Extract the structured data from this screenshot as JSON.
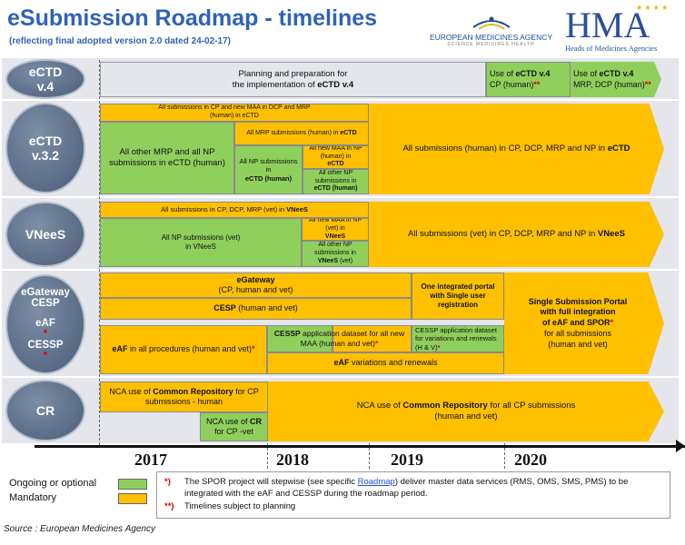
{
  "header": {
    "title": "eSubmission Roadmap - timelines",
    "subtitle": "(reflecting final adopted version 2.0 dated 24-02-17)",
    "ema_name": "EUROPEAN MEDICINES AGENCY",
    "ema_tagline": "SCIENCE  MEDICINES  HEALTH",
    "hma_logo": "HMA",
    "hma_name": "Heads of Medicines Agencies"
  },
  "rows": {
    "ectd4": {
      "label_line1": "eCTD",
      "label_line2": "v.4",
      "planning": "Planning and preparation for",
      "planning2": "the implementation of",
      "planning_bold": "eCTD v.4",
      "use_cp_prefix": "Use of",
      "use_cp_bold": "eCTD v.4",
      "use_cp_line2": "CP (human)",
      "use_mrp_prefix": "Use of",
      "use_mrp_bold": "eCTD v.4",
      "use_mrp_line2": "MRP, DCP (human)",
      "double_star": "**"
    },
    "ectd32": {
      "label_line1": "eCTD",
      "label_line2": "v.3.2",
      "all_cp_new": "All submissions in CP and new MAA in DCP and MRP",
      "all_cp_new2": "(human) in eCTD",
      "other_mrp": "All other MRP and all NP submissions in eCTD (human)",
      "all_mrp_prefix": "All MRP submissions (human) in",
      "all_mrp_bold": "eCTD",
      "all_np": "All NP submissions in",
      "all_np_bold": "eCTD (human)",
      "new_maa_np": "All new MAA in NP (human) in",
      "new_maa_np_bold": "eCTD",
      "other_np": "All other NP submissions in",
      "other_np_bold": "eCTD (human)",
      "final": "All submissions (human) in CP, DCP, MRP  and NP  in",
      "final_bold": "eCTD"
    },
    "vnees": {
      "label": "VNeeS",
      "all_cp": "All submissions in CP, DCP, MRP (vet) in",
      "all_cp_bold": "VNeeS",
      "all_np": "All NP submissions (vet)",
      "all_np2": "in VNeeS",
      "new_maa": "All new MAA in NP (vet) in",
      "new_maa_bold": "VNeeS",
      "other_np": "All other NP submissions in",
      "other_np_bold": "VNeeS",
      "other_np_end": "(vet)",
      "final": "All submissions (vet) in CP, DCP, MRP  and NP in",
      "final_bold": "VNeeS"
    },
    "egateway": {
      "label_line1": "eGateway",
      "label_line2": "CESP",
      "label_line3": "eAF",
      "label_line4": "CESSP",
      "star": "*",
      "egw_title": "eGateway",
      "egw_sub": "(CP, human and vet)",
      "cesp_bold": "CESP",
      "cesp_rest": "(human and vet)",
      "portal": "One integrated portal with Single user registration",
      "ssp_line1": "Single Submission Portal",
      "ssp_line2": "with full integration",
      "ssp_line3": "of eAF and SPOR",
      "ssp_line4": "for all submissions",
      "ssp_line5": "(human and vet)",
      "eaf_bold": "eAF",
      "eaf_rest": "in all procedures (human and vet)",
      "cessp_bold": "CESSP",
      "cessp_rest": "application dataset for all new MAA (human and vet)",
      "cessp_var": "CESSP application dataset for variations and renewals (H & V)",
      "eaf_var_bold": "eAF",
      "eaf_var_rest": "variations and renewals"
    },
    "cr": {
      "label": "CR",
      "nca_prefix": "NCA use of",
      "nca_bold": "Common Repository",
      "nca_rest": "for CP",
      "nca_line2": "submissions - human",
      "nca_vet_prefix": "NCA use of",
      "nca_vet_bold": "CR",
      "nca_vet_line2": "for CP -vet",
      "final_prefix": "NCA use of",
      "final_bold": "Common Repository",
      "final_rest": "for all CP submissions",
      "final_line2": "(human and vet)"
    }
  },
  "timeline": {
    "years": [
      "2017",
      "2018",
      "2019",
      "2020"
    ]
  },
  "legend": {
    "ongoing": "Ongoing or optional",
    "mandatory": "Mandatory",
    "colors": {
      "ongoing": "#8fcf5c",
      "mandatory": "#ffc000"
    }
  },
  "footnotes": {
    "note1_mark": "*)",
    "note1_a": "The SPOR project will stepwise (see specific",
    "note1_link": "Roadmap",
    "note1_b": ") deliver master data services (RMS, OMS, SMS, PMS) to be",
    "note1_c": "integrated with the eAF and CESSP during the roadmap period.",
    "note2_mark": "**)",
    "note2": "Timelines subject to planning"
  },
  "source": "Source : European  Medicines Agency"
}
